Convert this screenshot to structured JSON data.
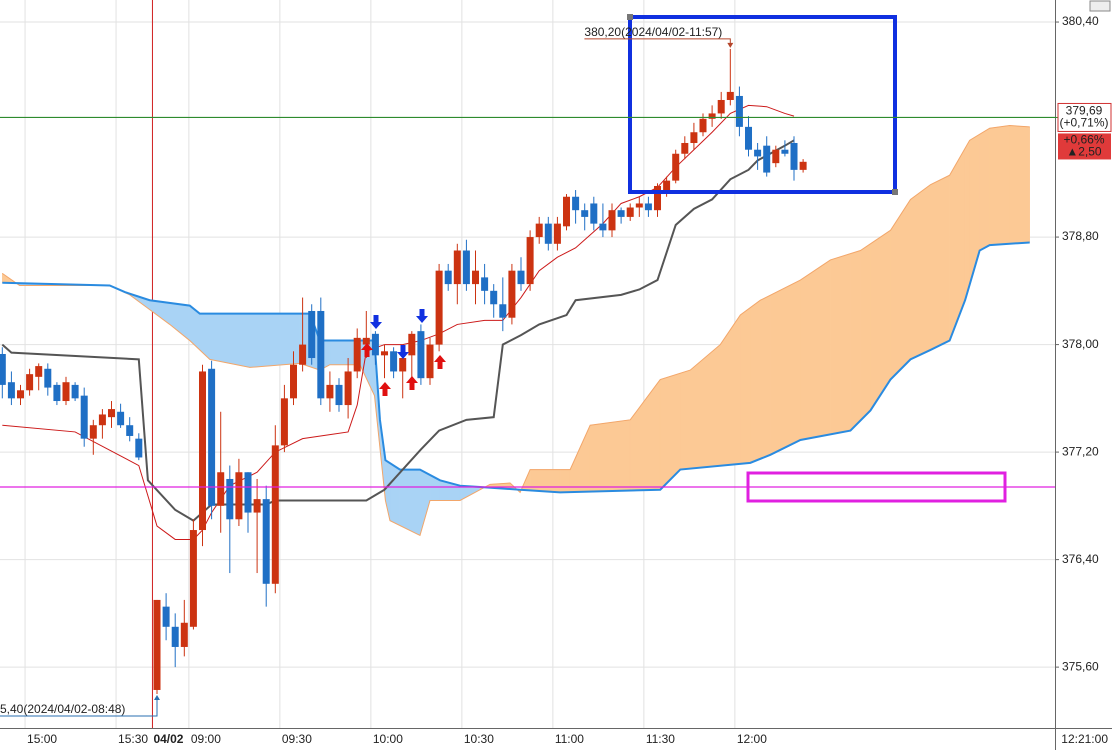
{
  "chart_data": {
    "type": "candlestick",
    "ylim": [
      375.147,
      380.564
    ],
    "yticks": [
      {
        "value": 380.4,
        "label": "380,40"
      },
      {
        "value": 378.8,
        "label": "378,80"
      },
      {
        "value": 378.0,
        "label": "378,00"
      },
      {
        "value": 377.2,
        "label": "377,20"
      },
      {
        "value": 376.4,
        "label": "376,40"
      },
      {
        "value": 375.6,
        "label": "375,60"
      }
    ],
    "xlim": [
      -0.253,
      115.68
    ],
    "xticks": [
      {
        "value": 2.5,
        "label": "15:00"
      },
      {
        "value": 12.5,
        "label": "15:30"
      },
      {
        "value": 20.5,
        "label": "09:00"
      },
      {
        "value": 30.5,
        "label": "09:30"
      },
      {
        "value": 40.5,
        "label": "10:00"
      },
      {
        "value": 50.5,
        "label": "10:30"
      },
      {
        "value": 60.5,
        "label": "11:00"
      },
      {
        "value": 70.5,
        "label": "11:30"
      },
      {
        "value": 80.5,
        "label": "12:00"
      }
    ],
    "day_break": {
      "value": 16.5,
      "label": "04/02",
      "color": "#d02020"
    },
    "current_time": "12:21:00",
    "grid": true,
    "up_color": "#cc3311",
    "down_color": "#1f6fc5",
    "candles": {
      "open": [
        377.93,
        377.72,
        377.6,
        377.66,
        377.76,
        377.82,
        377.7,
        377.58,
        377.7,
        377.62,
        377.3,
        377.4,
        377.46,
        377.5,
        377.4,
        377.3,
        null,
        375.43,
        376.05,
        375.9,
        375.75,
        375.9,
        376.62,
        377.82,
        376.8,
        377.0,
        376.7,
        377.05,
        376.75,
        376.85,
        376.22,
        377.25,
        377.6,
        377.85,
        378.25,
        378.25,
        377.6,
        377.7,
        377.55,
        377.8,
        378.0,
        378.08,
        377.92,
        377.95,
        377.8,
        377.92,
        378.1,
        377.75,
        378.0,
        378.55,
        378.45,
        378.7,
        378.45,
        378.5,
        378.4,
        378.3,
        378.2,
        378.55,
        378.45,
        378.8,
        378.9,
        378.75,
        378.88,
        379.1,
        379.0,
        379.05,
        378.9,
        378.85,
        379.0,
        378.95,
        379.02,
        379.05,
        379.0,
        379.15,
        379.22,
        379.42,
        379.5,
        379.58,
        379.68,
        379.72,
        379.82,
        379.85,
        379.62,
        379.45,
        379.48,
        379.35,
        379.45,
        379.5,
        379.3
      ],
      "high": [
        377.98,
        377.8,
        377.7,
        377.82,
        377.86,
        377.86,
        377.72,
        377.76,
        377.72,
        377.68,
        377.44,
        377.52,
        377.58,
        377.56,
        377.46,
        377.34,
        null,
        376.1,
        376.15,
        376.0,
        376.1,
        376.7,
        377.85,
        377.88,
        377.5,
        377.1,
        377.15,
        377.05,
        377.0,
        376.95,
        377.4,
        377.7,
        377.95,
        378.35,
        378.3,
        378.35,
        377.8,
        377.75,
        377.9,
        378.12,
        378.25,
        378.1,
        378.0,
        377.98,
        378.0,
        378.1,
        378.15,
        378.05,
        378.6,
        378.6,
        378.75,
        378.78,
        378.7,
        378.6,
        378.45,
        378.5,
        378.6,
        378.65,
        378.85,
        378.95,
        378.95,
        378.95,
        379.12,
        379.15,
        379.05,
        379.1,
        379.05,
        379.05,
        379.02,
        379.05,
        379.1,
        379.1,
        379.2,
        379.25,
        379.45,
        379.55,
        379.65,
        379.72,
        379.78,
        379.88,
        380.2,
        379.92,
        379.7,
        379.5,
        379.55,
        379.48,
        379.52,
        379.55,
        379.38
      ],
      "low": [
        377.6,
        377.55,
        377.55,
        377.62,
        377.66,
        377.62,
        377.55,
        377.55,
        377.58,
        377.24,
        377.18,
        377.3,
        377.38,
        377.38,
        377.28,
        377.14,
        null,
        375.4,
        375.8,
        375.6,
        375.68,
        375.88,
        376.5,
        376.7,
        376.6,
        376.3,
        376.65,
        376.6,
        376.3,
        376.05,
        376.15,
        377.2,
        377.55,
        377.8,
        377.85,
        377.55,
        377.5,
        377.5,
        377.45,
        377.75,
        377.9,
        377.85,
        377.75,
        377.75,
        377.6,
        377.7,
        377.7,
        377.7,
        377.95,
        378.4,
        378.3,
        378.4,
        378.3,
        378.3,
        378.2,
        378.1,
        378.15,
        378.4,
        378.4,
        378.75,
        378.7,
        378.7,
        378.85,
        378.9,
        378.85,
        378.85,
        378.8,
        378.8,
        378.9,
        378.92,
        378.95,
        378.95,
        378.95,
        379.1,
        379.2,
        379.38,
        379.45,
        379.55,
        379.62,
        379.68,
        379.78,
        379.55,
        379.4,
        379.3,
        379.25,
        379.32,
        379.4,
        379.22,
        379.28
      ],
      "close": [
        377.7,
        377.6,
        377.66,
        377.78,
        377.84,
        377.68,
        377.58,
        377.72,
        377.6,
        377.3,
        377.4,
        377.48,
        377.52,
        377.4,
        377.32,
        377.16,
        null,
        376.1,
        375.9,
        375.75,
        375.93,
        376.62,
        377.8,
        376.8,
        377.05,
        376.7,
        377.05,
        376.75,
        376.85,
        376.22,
        377.25,
        377.6,
        377.85,
        378.0,
        377.9,
        377.6,
        377.7,
        377.55,
        377.8,
        378.05,
        378.05,
        377.92,
        377.95,
        377.8,
        377.9,
        378.08,
        377.75,
        378.0,
        378.55,
        378.45,
        378.7,
        378.45,
        378.55,
        378.4,
        378.3,
        378.2,
        378.55,
        378.45,
        378.8,
        378.9,
        378.75,
        378.9,
        379.1,
        379.0,
        378.95,
        378.9,
        378.85,
        379.0,
        378.95,
        379.02,
        379.05,
        379.0,
        379.18,
        379.22,
        379.42,
        379.5,
        379.58,
        379.68,
        379.72,
        379.82,
        379.88,
        379.62,
        379.45,
        379.4,
        379.28,
        379.45,
        379.42,
        379.3,
        379.36
      ]
    },
    "lines": [
      {
        "color": "#cc1a1a",
        "width": 1,
        "x": [
          0,
          8,
          15,
          17,
          19,
          21,
          22,
          23,
          25,
          28,
          30,
          33,
          36,
          38,
          39,
          40,
          42,
          44,
          46,
          48,
          50,
          53,
          55,
          57,
          59,
          61,
          63,
          66,
          68,
          70,
          72,
          74,
          76,
          78,
          80,
          82,
          84,
          86,
          87
        ],
        "values": [
          377.4,
          377.35,
          377.1,
          376.65,
          376.55,
          376.55,
          376.62,
          376.75,
          376.95,
          377.05,
          377.2,
          377.3,
          377.33,
          377.35,
          377.55,
          377.95,
          378.0,
          378.0,
          378.03,
          378.08,
          378.15,
          378.18,
          378.18,
          378.35,
          378.55,
          378.65,
          378.72,
          378.9,
          379.05,
          379.1,
          379.17,
          379.32,
          379.45,
          379.58,
          379.72,
          379.78,
          379.77,
          379.72,
          379.7
        ]
      },
      {
        "color": "#555555",
        "width": 2,
        "x": [
          0,
          1,
          15,
          16,
          19,
          21,
          23,
          29,
          30,
          40,
          42,
          46,
          48,
          51,
          54,
          55,
          57,
          59,
          62,
          63,
          68,
          70,
          72,
          74,
          76,
          78,
          80,
          82,
          83,
          86,
          87
        ],
        "values": [
          378.0,
          377.94,
          377.89,
          376.99,
          376.77,
          376.69,
          376.81,
          376.81,
          376.84,
          376.84,
          376.92,
          377.22,
          377.36,
          377.44,
          377.46,
          378.0,
          378.07,
          378.15,
          378.22,
          378.33,
          378.37,
          378.41,
          378.48,
          378.89,
          379.01,
          379.08,
          379.23,
          379.3,
          379.37,
          379.48,
          379.52
        ]
      }
    ],
    "cloud": {
      "span_a": {
        "color": "#f2a66a",
        "width": 1,
        "x": [
          0,
          1.9,
          11.8,
          14,
          16.2,
          18.4,
          20.6,
          22.8,
          27.2,
          32.7,
          34.9,
          36,
          39.3,
          40.9,
          42.1,
          42.6,
          45.9,
          47,
          50.3,
          53.6,
          55.8,
          56.9,
          58,
          62.4,
          64.6,
          69,
          72.3,
          75.6,
          78.9,
          81.1,
          83.3,
          87.7,
          91,
          94.3,
          97.6,
          99.8,
          102,
          104.1,
          106.3,
          108.5,
          110.7,
          112.9
        ],
        "values": [
          378.53,
          378.44,
          378.44,
          378.37,
          378.26,
          378.15,
          378.03,
          377.89,
          377.83,
          377.86,
          377.81,
          377.85,
          377.85,
          377.62,
          376.84,
          376.69,
          376.58,
          376.84,
          376.84,
          376.96,
          376.97,
          376.9,
          377.07,
          377.07,
          377.4,
          377.44,
          377.74,
          377.81,
          378.0,
          378.22,
          378.33,
          378.48,
          378.63,
          378.7,
          378.85,
          379.08,
          379.19,
          379.26,
          379.52,
          379.61,
          379.63,
          379.62
        ]
      },
      "span_b": {
        "color": "#2a8be0",
        "width": 2,
        "x": [
          0,
          11.8,
          13.5,
          16.2,
          20.6,
          21.7,
          33.8,
          34.9,
          40.9,
          41.5,
          42.1,
          43.7,
          45.9,
          48.1,
          50.3,
          52.5,
          56.9,
          61.3,
          72.3,
          74.5,
          82.2,
          84.4,
          87.7,
          93.2,
          95.4,
          97.6,
          99.8,
          102,
          104.1,
          105.8,
          107.4,
          108.5,
          112.9
        ],
        "values": [
          378.46,
          378.44,
          378.39,
          378.33,
          378.29,
          378.23,
          378.23,
          378.03,
          378.03,
          377.44,
          377.14,
          377.07,
          377.07,
          376.99,
          376.95,
          376.94,
          376.92,
          376.9,
          376.92,
          377.07,
          377.12,
          377.18,
          377.29,
          377.36,
          377.51,
          377.74,
          377.89,
          377.96,
          378.03,
          378.33,
          378.7,
          378.74,
          378.76
        ]
      },
      "fill_a_above": "#fcc995",
      "fill_b_above": "#a9d3f5"
    },
    "hlines": [
      {
        "value": 379.69,
        "color": "#2e8b2e"
      },
      {
        "value": 376.94,
        "color": "#e020e0"
      }
    ],
    "annotations": [
      {
        "text": "380,20(2024/04/02-11:57)",
        "value": 380.2,
        "index": 80,
        "color": "#b5452a"
      },
      {
        "text": "5,40(2024/04/02-08:48)",
        "value": 375.4,
        "index": 17,
        "color": "#2a6fb0"
      }
    ],
    "price_tag": {
      "value": 379.69,
      "label": "379,69",
      "change": "(+0,71%)"
    },
    "change_tag": {
      "change": "+0,66%",
      "diff": "▲2,50"
    }
  }
}
